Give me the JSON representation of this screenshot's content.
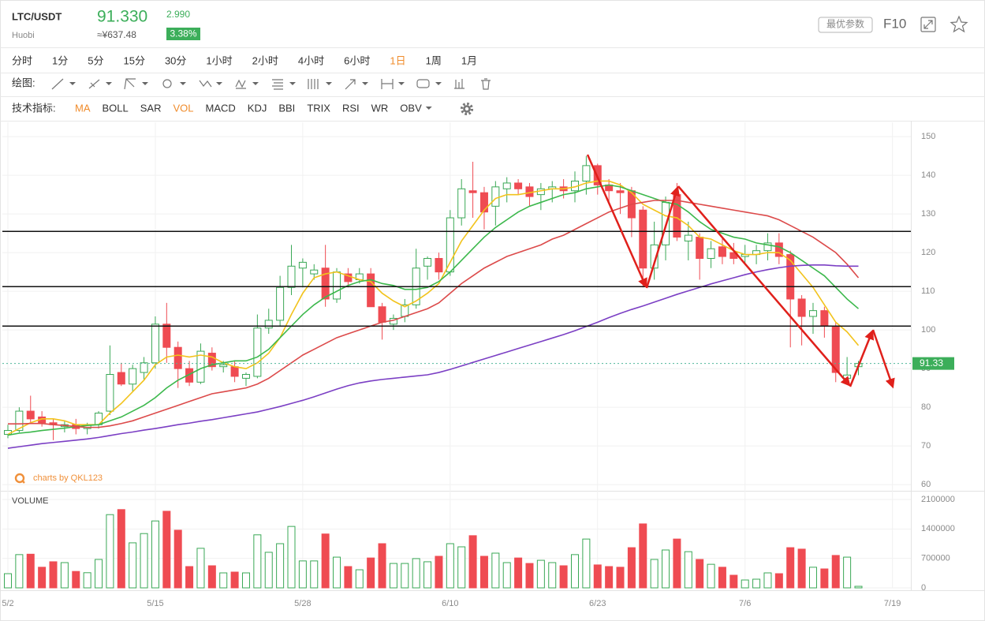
{
  "header": {
    "symbol": "LTC/USDT",
    "exchange": "Huobi",
    "price": "91.330",
    "cny_price": "≈¥637.48",
    "change": "2.990",
    "change_pct": "3.38%",
    "button": "最优参数",
    "f10": "F10"
  },
  "periods": {
    "items": [
      "分时",
      "1分",
      "5分",
      "15分",
      "30分",
      "1小时",
      "2小时",
      "4小时",
      "6小时",
      "1日",
      "1周",
      "1月"
    ],
    "active": 9
  },
  "drawing_label": "绘图:",
  "indicators": {
    "label": "技术指标:",
    "items": [
      "MA",
      "BOLL",
      "SAR",
      "VOL",
      "MACD",
      "KDJ",
      "BBI",
      "TRIX",
      "RSI",
      "WR",
      "OBV"
    ],
    "active": [
      0,
      3
    ]
  },
  "watermark": "charts by QKL123",
  "chart_data": {
    "type": "candlestick",
    "categories": [
      "5/2",
      null,
      null,
      null,
      null,
      null,
      null,
      null,
      null,
      null,
      null,
      null,
      null,
      "5/15",
      null,
      null,
      null,
      null,
      null,
      null,
      null,
      null,
      null,
      null,
      null,
      null,
      "5/28",
      null,
      null,
      null,
      null,
      null,
      null,
      null,
      null,
      null,
      null,
      null,
      null,
      "6/10",
      null,
      null,
      null,
      null,
      null,
      null,
      null,
      null,
      null,
      null,
      null,
      null,
      "6/23",
      null,
      null,
      null,
      null,
      null,
      null,
      null,
      null,
      null,
      null,
      null,
      null,
      "7/6",
      null,
      null,
      null,
      null,
      null,
      null,
      null,
      null,
      null,
      null,
      null,
      null,
      "7/19"
    ],
    "open": [
      73,
      74,
      79,
      77.5,
      76,
      75,
      75.5,
      74.5,
      75.5,
      79,
      89,
      86,
      89,
      91.5,
      101.5,
      95.5,
      90,
      86.5,
      94,
      90.5,
      90.5,
      87.5,
      88,
      100.5,
      102.5,
      111,
      116,
      114.5,
      116,
      108,
      114.5,
      113,
      114.5,
      106,
      101.5,
      103.5,
      106.5,
      116.5,
      118.5,
      115,
      129,
      136,
      135.5,
      132,
      136.5,
      138,
      137,
      135,
      136.5,
      137,
      136,
      138.5,
      142.5,
      137.5,
      136,
      136,
      131,
      116,
      122,
      135,
      123,
      124,
      118.5,
      121.5,
      120,
      119,
      119.5,
      120.5,
      122.5,
      119.5,
      108,
      103.5,
      105,
      101,
      87.5,
      90.5,
      null,
      null,
      null
    ],
    "high": [
      75.5,
      80,
      83,
      79,
      77,
      76.5,
      77,
      76,
      79,
      96,
      91.5,
      91,
      93,
      103.5,
      107,
      97,
      92,
      96.5,
      95.5,
      92,
      92,
      89,
      104,
      105.5,
      114,
      122,
      118.5,
      117,
      122,
      116,
      116,
      116,
      116,
      107,
      104,
      108,
      121,
      119,
      120,
      131,
      139,
      143.5,
      137,
      138.5,
      139.5,
      139,
      138,
      138,
      138.5,
      139,
      141,
      145,
      143,
      139,
      138,
      137,
      132,
      128,
      134.5,
      138,
      128,
      125,
      123,
      124,
      122.5,
      122,
      122,
      125,
      125,
      120.5,
      109,
      107,
      106,
      102,
      93,
      92,
      null,
      null,
      null
    ],
    "low": [
      72,
      73.5,
      76,
      75,
      71.5,
      73.5,
      73,
      73,
      74.5,
      78,
      85.5,
      84,
      87,
      90,
      91.5,
      85,
      85.5,
      86,
      89.5,
      89,
      86.5,
      85.5,
      87.5,
      99,
      101,
      109,
      111,
      113,
      106,
      107,
      111,
      112,
      106,
      97.5,
      100,
      102,
      105.5,
      113,
      113,
      114,
      127,
      129,
      126,
      127,
      133,
      135,
      132,
      131,
      133,
      134,
      133,
      135,
      135,
      133,
      130,
      124,
      111,
      113,
      118,
      123,
      118,
      113,
      116,
      117,
      117,
      117,
      117,
      118,
      117,
      95.5,
      96,
      99,
      98,
      86.5,
      86,
      88.3,
      null,
      null,
      null
    ],
    "close": [
      74,
      79,
      77,
      76,
      75.5,
      75.5,
      74.5,
      75.5,
      78.5,
      88.5,
      86,
      90,
      91.5,
      101.5,
      95.5,
      90,
      86.5,
      94.5,
      90.5,
      91,
      88,
      88.5,
      100.5,
      102.5,
      111,
      116.5,
      117.5,
      115.5,
      108,
      115,
      112.5,
      114.5,
      106,
      102,
      103,
      106.5,
      116,
      118.5,
      115,
      129,
      136.5,
      135.5,
      130.5,
      137,
      138,
      136.5,
      134.5,
      136.5,
      137,
      136,
      138.5,
      142.5,
      137.5,
      136,
      135.5,
      129,
      116,
      122,
      133,
      124,
      124.5,
      118.5,
      121,
      119,
      118.5,
      119.5,
      120.5,
      122.5,
      119,
      108,
      103.5,
      105,
      101,
      89,
      88.34,
      91.33,
      null,
      null,
      null
    ],
    "colors": {
      "up": "#3aa856",
      "down": "#ef4b52"
    },
    "ma": [
      {
        "color": "#f2c31c",
        "values": [
          73,
          74.5,
          76,
          77,
          77,
          76.5,
          75.5,
          75.5,
          75.5,
          78.5,
          81,
          84,
          87,
          91,
          93,
          93.5,
          93,
          93.5,
          93,
          91.5,
          90.5,
          90,
          91.5,
          94,
          98,
          104,
          109.5,
          113.5,
          114.5,
          115,
          114,
          113,
          112.5,
          109.5,
          107.5,
          106,
          107.5,
          109.5,
          112,
          117.5,
          123,
          127,
          131,
          134,
          135,
          135,
          135.5,
          136,
          136.5,
          136.5,
          137,
          138,
          138.5,
          138.5,
          137.5,
          135.5,
          132.5,
          131,
          129.5,
          129,
          127,
          124,
          123.5,
          122,
          120.5,
          119.5,
          119.5,
          120,
          120,
          118,
          114.5,
          111,
          106.5,
          102,
          99.5,
          96,
          null,
          null,
          null
        ]
      },
      {
        "color": "#3cb84c",
        "values": [
          72.8,
          73.3,
          73.6,
          74,
          74.3,
          74.6,
          75,
          75.3,
          75.5,
          76.5,
          77.5,
          79,
          80.5,
          82.5,
          85,
          87,
          88.5,
          90,
          91,
          91.5,
          92,
          92,
          93,
          95,
          98,
          101,
          104,
          106.5,
          108.5,
          110,
          111.5,
          112.5,
          113,
          112,
          111.5,
          110.5,
          110.5,
          111,
          112.5,
          115,
          118,
          121,
          124,
          126.5,
          128.5,
          130.5,
          132,
          133,
          134,
          135,
          135.5,
          136.5,
          137,
          137.5,
          137,
          136,
          135,
          134,
          133,
          132.5,
          130.5,
          128,
          126,
          125,
          124,
          123.5,
          122.5,
          122,
          121.5,
          120,
          118,
          116,
          114,
          111,
          108,
          105.5,
          null,
          null,
          null
        ]
      },
      {
        "color": "#dc4a4a",
        "values": [
          75.7,
          75.7,
          75.8,
          75.8,
          75.5,
          75.3,
          75,
          74.8,
          74.8,
          75.2,
          75.8,
          76.5,
          77.5,
          78.5,
          79.5,
          80.5,
          81.5,
          82.5,
          83.5,
          84,
          84.5,
          85,
          86,
          87.5,
          89.5,
          91.5,
          93.5,
          95,
          96.5,
          98,
          99,
          100,
          101,
          102,
          102.5,
          103.5,
          104.5,
          105.5,
          107,
          109.5,
          112,
          114,
          116,
          117.5,
          119,
          120,
          121,
          122,
          123.5,
          124.5,
          126,
          127.5,
          129,
          130.5,
          131.5,
          132.5,
          133,
          133.5,
          133.5,
          133.5,
          133,
          132.5,
          132,
          131.5,
          131,
          130.5,
          130,
          129.5,
          128.5,
          127,
          125.5,
          124,
          122,
          120,
          117,
          113.5,
          null,
          null,
          null
        ]
      },
      {
        "color": "#7b3fc4",
        "values": [
          69.4,
          69.8,
          70.2,
          70.6,
          70.9,
          71.2,
          71.5,
          71.8,
          72.2,
          72.7,
          73.2,
          73.6,
          74.1,
          74.5,
          75,
          75.5,
          75.9,
          76.4,
          76.8,
          77.3,
          77.8,
          78.3,
          78.8,
          79.5,
          80.2,
          81,
          81.8,
          82.7,
          83.7,
          84.7,
          85.6,
          86.3,
          86.8,
          87.2,
          87.5,
          87.8,
          88.1,
          88.4,
          89,
          89.8,
          90.7,
          91.6,
          92.5,
          93.4,
          94.3,
          95.2,
          96.1,
          97,
          97.9,
          98.8,
          99.8,
          100.9,
          102,
          103.2,
          104.3,
          105.3,
          106.2,
          107.2,
          108.2,
          109.2,
          110.1,
          111,
          111.9,
          112.7,
          113.5,
          114.3,
          115,
          115.6,
          116.1,
          116.5,
          116.7,
          116.8,
          116.8,
          116.6,
          116.5,
          116.5,
          null,
          null,
          null
        ]
      }
    ],
    "hlines": [
      125.5,
      111.2,
      101
    ],
    "last_price": 91.33,
    "ylim": [
      58.4,
      153.7
    ],
    "yticks": [
      60,
      70,
      80,
      90,
      100,
      110,
      120,
      130,
      140,
      150
    ],
    "grid": true,
    "volume": {
      "title": "VOLUME",
      "values": [
        337000,
        790000,
        800000,
        490000,
        620000,
        600000,
        390000,
        360000,
        675000,
        1740000,
        1860000,
        1070000,
        1290000,
        1590000,
        1820000,
        1370000,
        506000,
        940000,
        525000,
        356000,
        375000,
        356000,
        1260000,
        845000,
        1050000,
        1460000,
        640000,
        640000,
        1280000,
        730000,
        506000,
        430000,
        710000,
        1050000,
        580000,
        580000,
        695000,
        620000,
        750000,
        1050000,
        975000,
        1240000,
        750000,
        825000,
        600000,
        710000,
        580000,
        655000,
        600000,
        525000,
        790000,
        1160000,
        545000,
        506000,
        490000,
        955000,
        1520000,
        675000,
        900000,
        1160000,
        860000,
        675000,
        560000,
        490000,
        300000,
        187000,
        206000,
        356000,
        337000,
        955000,
        920000,
        490000,
        450000,
        770000,
        730000,
        37000,
        null,
        null,
        null
      ],
      "ylim": [
        0,
        2250000
      ],
      "yticks": [
        0,
        700000,
        1400000,
        2100000
      ]
    }
  }
}
